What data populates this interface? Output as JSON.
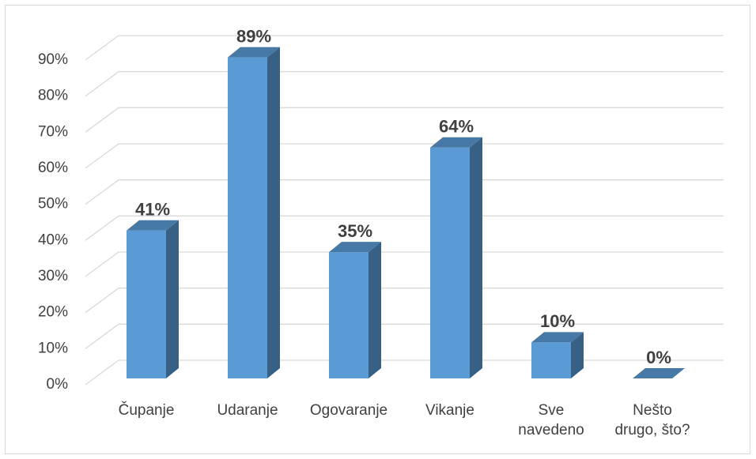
{
  "chart_data": {
    "type": "bar",
    "categories": [
      "Čupanje",
      "Udaranje",
      "Ogovaranje",
      "Vikanje",
      "Sve navedeno",
      "Nešto drugo, što?"
    ],
    "values": [
      41,
      89,
      35,
      64,
      10,
      0
    ],
    "value_labels": [
      "41%",
      "89%",
      "35%",
      "64%",
      "10%",
      "0%"
    ],
    "color": "#5b9bd5",
    "ylim": [
      0,
      90
    ],
    "yticks": [
      {
        "value": 0,
        "label": "0%"
      },
      {
        "value": 10,
        "label": "10%"
      },
      {
        "value": 20,
        "label": "20%"
      },
      {
        "value": 30,
        "label": "30%"
      },
      {
        "value": 40,
        "label": "40%"
      },
      {
        "value": 50,
        "label": "50%"
      },
      {
        "value": 60,
        "label": "60%"
      },
      {
        "value": 70,
        "label": "70%"
      },
      {
        "value": 80,
        "label": "80%"
      },
      {
        "value": 90,
        "label": "90%"
      }
    ],
    "grid": true
  }
}
